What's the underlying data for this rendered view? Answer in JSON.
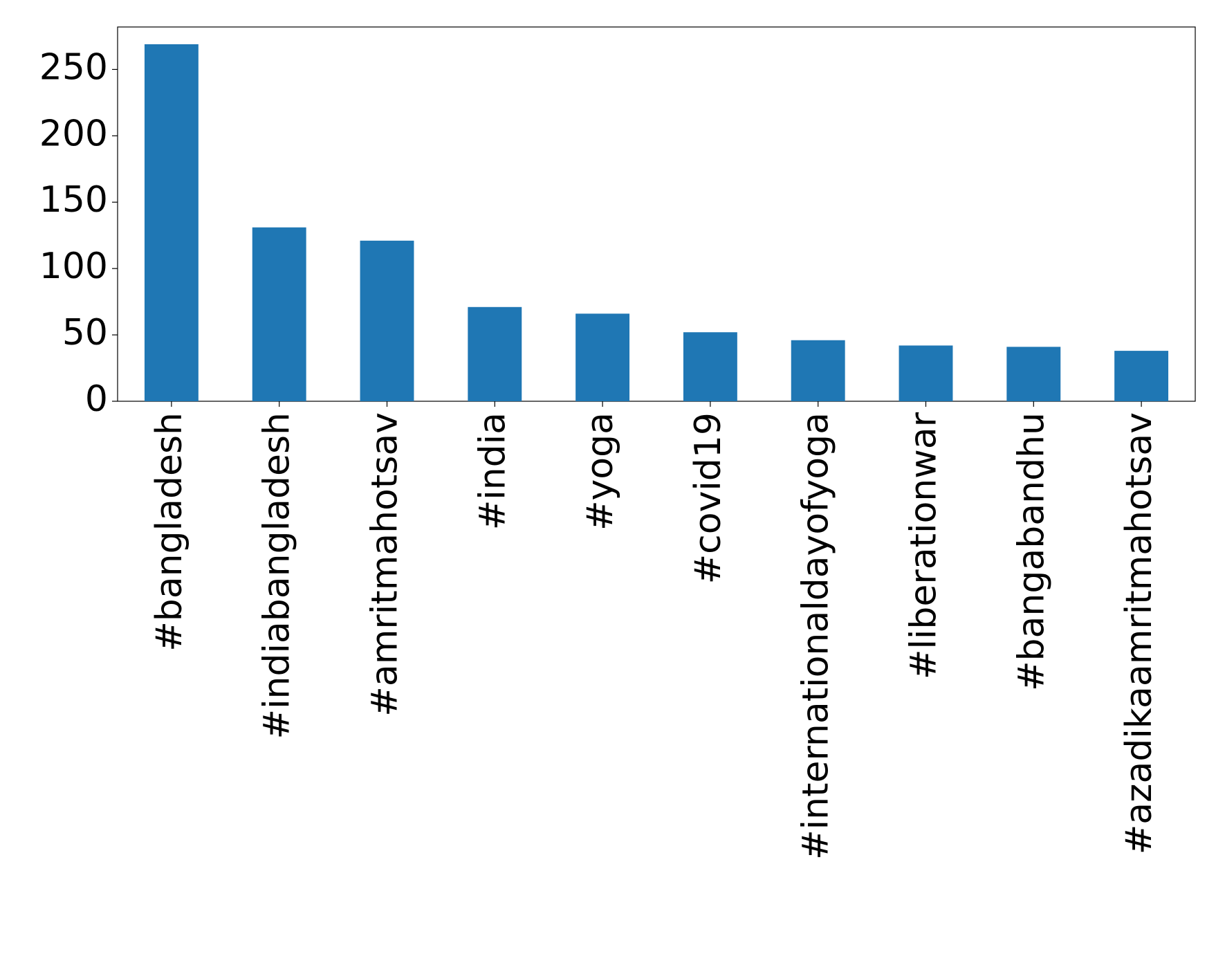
{
  "chart_data": {
    "type": "bar",
    "categories": [
      "#bangladesh",
      "#indiabangladesh",
      "#amritmahotsav",
      "#india",
      "#yoga",
      "#covid19",
      "#internationaldayofyoga",
      "#liberationwar",
      "#bangabandhu",
      "#azadikaamritmahotsav"
    ],
    "values": [
      269,
      131,
      121,
      71,
      66,
      52,
      46,
      42,
      41,
      38
    ],
    "color": "#1f77b4",
    "ylim": [
      0,
      282
    ],
    "yticks": [
      0,
      50,
      100,
      150,
      200,
      250
    ],
    "grid": false
  }
}
